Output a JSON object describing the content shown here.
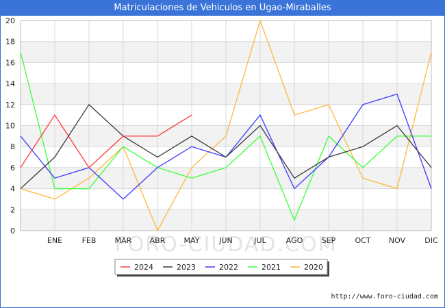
{
  "title": "Matriculaciones de Vehiculos en Ugao-Miraballes",
  "source": "http://www.foro-ciudad.com",
  "watermark": "FORO-CIUDAD.COM",
  "chart_data": {
    "type": "line",
    "categories": [
      "",
      "ENE",
      "FEB",
      "MAR",
      "ABR",
      "MAY",
      "JUN",
      "JUL",
      "AGO",
      "SEP",
      "OCT",
      "NOV",
      "DIC"
    ],
    "ylim": [
      0,
      20
    ],
    "yticks": [
      0,
      2,
      4,
      6,
      8,
      10,
      12,
      14,
      16,
      18,
      20
    ],
    "grid": true,
    "legend_position": "bottom",
    "series": [
      {
        "name": "2024",
        "color": "#ff4444",
        "values": [
          6,
          11,
          6,
          9,
          9,
          11,
          null,
          null,
          null,
          null,
          null,
          null,
          null
        ]
      },
      {
        "name": "2023",
        "color": "#444444",
        "values": [
          4,
          7,
          12,
          9,
          7,
          9,
          7,
          10,
          5,
          7,
          8,
          10,
          6
        ]
      },
      {
        "name": "2022",
        "color": "#4444ff",
        "values": [
          9,
          5,
          6,
          3,
          6,
          8,
          7,
          11,
          4,
          7,
          12,
          13,
          4
        ]
      },
      {
        "name": "2021",
        "color": "#44ff44",
        "values": [
          17,
          4,
          4,
          8,
          6,
          5,
          6,
          9,
          1,
          9,
          6,
          9,
          9
        ]
      },
      {
        "name": "2020",
        "color": "#ffbb44",
        "values": [
          4,
          3,
          5,
          8,
          0,
          6,
          9,
          20,
          11,
          12,
          5,
          4,
          17
        ]
      }
    ]
  }
}
